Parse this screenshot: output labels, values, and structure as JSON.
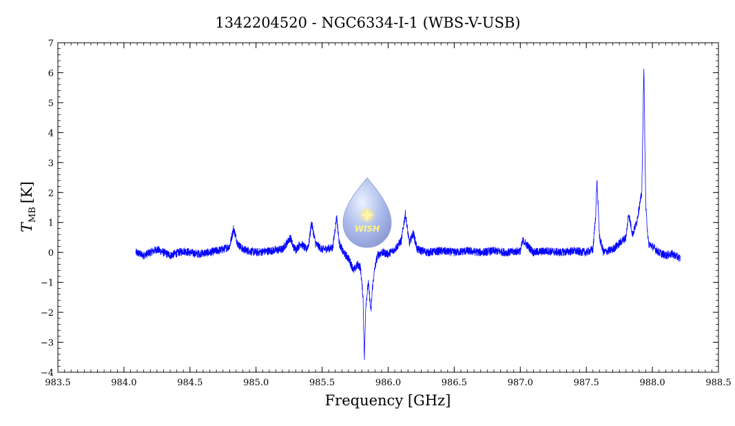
{
  "chart_data": {
    "type": "line",
    "title": "1342204520 - NGC6334-I-1 (WBS-V-USB)",
    "xlabel": "Frequency [GHz]",
    "ylabel_main": "T",
    "ylabel_sub": "MB",
    "ylabel_unit": "[K]",
    "xlim": [
      983.5,
      988.5
    ],
    "ylim": [
      -4,
      7
    ],
    "xticks": [
      983.5,
      984.0,
      984.5,
      985.0,
      985.5,
      986.0,
      986.5,
      987.0,
      987.5,
      988.0,
      988.5
    ],
    "xtick_labels": [
      "983.5",
      "984.0",
      "984.5",
      "985.0",
      "985.5",
      "986.0",
      "986.5",
      "987.0",
      "987.5",
      "988.0",
      "988.5"
    ],
    "yticks": [
      -4,
      -3,
      -2,
      -1,
      0,
      1,
      2,
      3,
      4,
      5,
      6,
      7
    ],
    "ytick_labels": [
      "−4",
      "−3",
      "−2",
      "−1",
      "0",
      "1",
      "2",
      "3",
      "4",
      "5",
      "6",
      "7"
    ],
    "grid": false,
    "series": [
      {
        "color": "#0000ff",
        "x": [
          984.09,
          984.15,
          984.25,
          984.35,
          984.45,
          984.55,
          984.65,
          984.7,
          984.75,
          984.8,
          984.83,
          984.86,
          984.9,
          984.95,
          985.0,
          985.1,
          985.2,
          985.26,
          985.28,
          985.3,
          985.34,
          985.38,
          985.4,
          985.42,
          985.45,
          985.5,
          985.58,
          985.61,
          985.63,
          985.66,
          985.7,
          985.74,
          985.77,
          985.79,
          985.81,
          985.82,
          985.83,
          985.85,
          985.87,
          985.88,
          985.9,
          985.92,
          985.95,
          986.0,
          986.05,
          986.1,
          986.13,
          986.16,
          986.19,
          986.22,
          986.3,
          986.4,
          986.5,
          986.6,
          986.7,
          986.8,
          986.9,
          987.0,
          987.02,
          987.1,
          987.2,
          987.3,
          987.4,
          987.5,
          987.55,
          987.57,
          987.58,
          987.6,
          987.63,
          987.7,
          987.75,
          987.8,
          987.82,
          987.85,
          987.88,
          987.9,
          987.92,
          987.935,
          987.95,
          987.97,
          988.0,
          988.05,
          988.1,
          988.15,
          988.21
        ],
        "y": [
          0.0,
          -0.1,
          0.1,
          -0.1,
          0.05,
          -0.05,
          0.0,
          0.05,
          0.1,
          0.2,
          0.8,
          0.3,
          0.1,
          0.05,
          0.0,
          0.05,
          0.1,
          0.5,
          0.2,
          0.1,
          0.3,
          0.1,
          0.3,
          1.0,
          0.3,
          0.1,
          0.15,
          1.2,
          0.3,
          0.0,
          -0.2,
          -0.6,
          -0.4,
          -0.5,
          -1.5,
          -3.6,
          -1.8,
          -1.0,
          -2.0,
          -1.2,
          -0.5,
          -0.1,
          0.0,
          -0.05,
          0.1,
          0.4,
          1.3,
          0.3,
          0.65,
          0.1,
          0.0,
          0.05,
          0.0,
          0.05,
          0.0,
          0.05,
          0.0,
          0.05,
          0.4,
          0.0,
          0.05,
          0.0,
          0.05,
          0.0,
          0.1,
          1.2,
          2.4,
          0.5,
          0.0,
          0.1,
          0.3,
          0.5,
          1.3,
          0.6,
          1.0,
          1.5,
          2.0,
          6.2,
          1.5,
          0.3,
          0.2,
          0.0,
          -0.1,
          -0.05,
          -0.2
        ]
      }
    ],
    "logo_text": "WISH"
  }
}
